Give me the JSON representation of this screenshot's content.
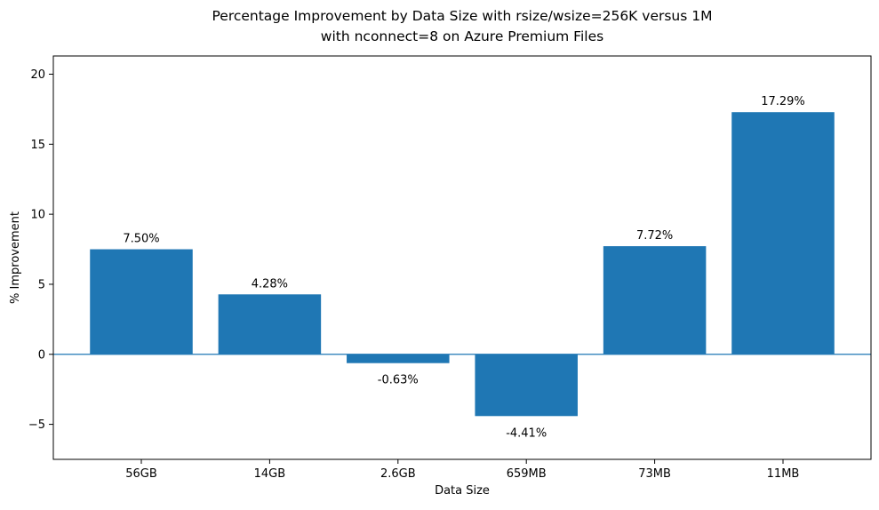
{
  "chart_data": {
    "type": "bar",
    "title_lines": [
      "Percentage Improvement by Data Size with rsize/wsize=256K versus 1M",
      "with nconnect=8 on Azure Premium Files"
    ],
    "xlabel": "Data Size",
    "ylabel": "% Improvement",
    "categories": [
      "56GB",
      "14GB",
      "2.6GB",
      "659MB",
      "73MB",
      "11MB"
    ],
    "values": [
      7.5,
      4.28,
      -0.63,
      -4.41,
      7.72,
      17.29
    ],
    "data_labels": [
      "7.50%",
      "4.28%",
      "-0.63%",
      "-4.41%",
      "7.72%",
      "17.29%"
    ],
    "ylim": [
      -7.5,
      21.3
    ],
    "yticks": [
      -5,
      0,
      5,
      10,
      15,
      20
    ],
    "ytick_labels": [
      "−5",
      "0",
      "5",
      "10",
      "15",
      "20"
    ],
    "bar_color": "#1f77b4",
    "zero_line_color": "#1f77b4",
    "grid": false,
    "legend": "none"
  }
}
